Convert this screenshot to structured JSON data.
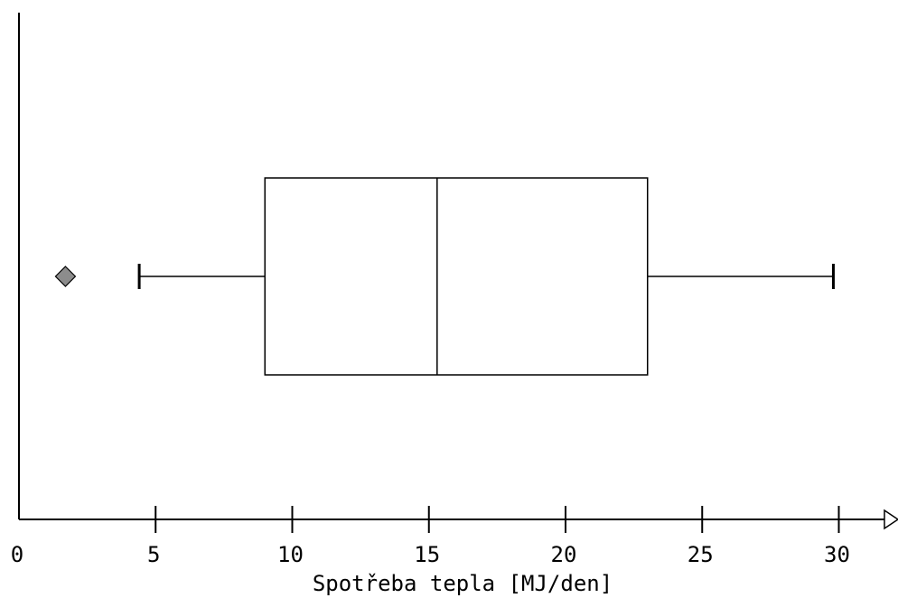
{
  "chart_data": {
    "type": "box",
    "orientation": "horizontal",
    "title": "",
    "xlabel": "Spotřeba tepla [MJ/den]",
    "ylabel": "",
    "xlim": [
      0,
      32
    ],
    "xticks": [
      0,
      5,
      10,
      15,
      20,
      25,
      30
    ],
    "xtick_labels": [
      "0",
      "5",
      "10",
      "15",
      "20",
      "25",
      "30"
    ],
    "grid": false,
    "legend": "none",
    "series": [
      {
        "whisker_low": 4.4,
        "q1": 9.0,
        "median": 15.3,
        "q3": 23.0,
        "whisker_high": 29.8,
        "outliers": [
          1.7
        ]
      }
    ],
    "colors": {
      "box_fill": "#ffffff",
      "stroke": "#000000",
      "outlier_fill": "#8c8c8c"
    }
  }
}
